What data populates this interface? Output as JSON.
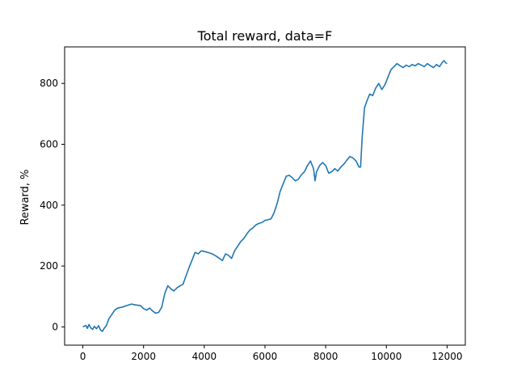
{
  "chart_data": {
    "type": "line",
    "title": "Total reward, data=F",
    "xlabel": "",
    "ylabel": "Reward, %",
    "xlim": [
      -600,
      12600
    ],
    "ylim": [
      -60,
      920
    ],
    "xticks": [
      0,
      2000,
      4000,
      6000,
      8000,
      10000,
      12000
    ],
    "yticks": [
      0,
      200,
      400,
      600,
      800
    ],
    "grid": false,
    "series": [
      {
        "color": "#1f77b4",
        "points": [
          [
            0,
            0
          ],
          [
            100,
            5
          ],
          [
            150,
            -5
          ],
          [
            200,
            8
          ],
          [
            260,
            -3
          ],
          [
            320,
            -8
          ],
          [
            380,
            2
          ],
          [
            450,
            -6
          ],
          [
            520,
            4
          ],
          [
            580,
            -10
          ],
          [
            640,
            -15
          ],
          [
            700,
            -5
          ],
          [
            780,
            5
          ],
          [
            850,
            25
          ],
          [
            950,
            40
          ],
          [
            1050,
            55
          ],
          [
            1150,
            62
          ],
          [
            1300,
            65
          ],
          [
            1450,
            70
          ],
          [
            1600,
            75
          ],
          [
            1750,
            72
          ],
          [
            1900,
            70
          ],
          [
            2000,
            60
          ],
          [
            2100,
            55
          ],
          [
            2200,
            62
          ],
          [
            2300,
            52
          ],
          [
            2400,
            45
          ],
          [
            2500,
            48
          ],
          [
            2600,
            65
          ],
          [
            2700,
            110
          ],
          [
            2800,
            135
          ],
          [
            2900,
            125
          ],
          [
            3000,
            118
          ],
          [
            3100,
            128
          ],
          [
            3200,
            135
          ],
          [
            3300,
            140
          ],
          [
            3400,
            168
          ],
          [
            3500,
            195
          ],
          [
            3600,
            220
          ],
          [
            3700,
            245
          ],
          [
            3800,
            240
          ],
          [
            3900,
            250
          ],
          [
            4000,
            248
          ],
          [
            4100,
            245
          ],
          [
            4200,
            242
          ],
          [
            4300,
            238
          ],
          [
            4400,
            232
          ],
          [
            4500,
            225
          ],
          [
            4600,
            218
          ],
          [
            4700,
            240
          ],
          [
            4800,
            235
          ],
          [
            4900,
            225
          ],
          [
            5000,
            250
          ],
          [
            5100,
            265
          ],
          [
            5200,
            280
          ],
          [
            5300,
            290
          ],
          [
            5400,
            305
          ],
          [
            5500,
            318
          ],
          [
            5600,
            325
          ],
          [
            5700,
            335
          ],
          [
            5800,
            340
          ],
          [
            5900,
            343
          ],
          [
            6000,
            350
          ],
          [
            6100,
            352
          ],
          [
            6200,
            355
          ],
          [
            6300,
            375
          ],
          [
            6400,
            405
          ],
          [
            6500,
            445
          ],
          [
            6600,
            470
          ],
          [
            6700,
            495
          ],
          [
            6800,
            498
          ],
          [
            6900,
            490
          ],
          [
            7000,
            480
          ],
          [
            7100,
            485
          ],
          [
            7200,
            500
          ],
          [
            7300,
            510
          ],
          [
            7400,
            530
          ],
          [
            7500,
            545
          ],
          [
            7600,
            520
          ],
          [
            7650,
            480
          ],
          [
            7700,
            510
          ],
          [
            7800,
            530
          ],
          [
            7900,
            540
          ],
          [
            8000,
            530
          ],
          [
            8100,
            505
          ],
          [
            8200,
            510
          ],
          [
            8300,
            520
          ],
          [
            8400,
            512
          ],
          [
            8500,
            525
          ],
          [
            8600,
            535
          ],
          [
            8700,
            548
          ],
          [
            8800,
            560
          ],
          [
            8900,
            555
          ],
          [
            9000,
            545
          ],
          [
            9100,
            525
          ],
          [
            9150,
            525
          ],
          [
            9200,
            620
          ],
          [
            9280,
            720
          ],
          [
            9350,
            740
          ],
          [
            9450,
            765
          ],
          [
            9550,
            760
          ],
          [
            9650,
            785
          ],
          [
            9750,
            800
          ],
          [
            9850,
            780
          ],
          [
            9950,
            795
          ],
          [
            10050,
            820
          ],
          [
            10150,
            845
          ],
          [
            10250,
            855
          ],
          [
            10350,
            865
          ],
          [
            10450,
            858
          ],
          [
            10550,
            852
          ],
          [
            10650,
            860
          ],
          [
            10750,
            855
          ],
          [
            10850,
            862
          ],
          [
            10950,
            858
          ],
          [
            11050,
            865
          ],
          [
            11150,
            860
          ],
          [
            11250,
            855
          ],
          [
            11350,
            865
          ],
          [
            11450,
            858
          ],
          [
            11550,
            852
          ],
          [
            11650,
            862
          ],
          [
            11750,
            855
          ],
          [
            11850,
            870
          ],
          [
            11900,
            875
          ],
          [
            11950,
            868
          ],
          [
            12000,
            865
          ]
        ]
      }
    ]
  }
}
